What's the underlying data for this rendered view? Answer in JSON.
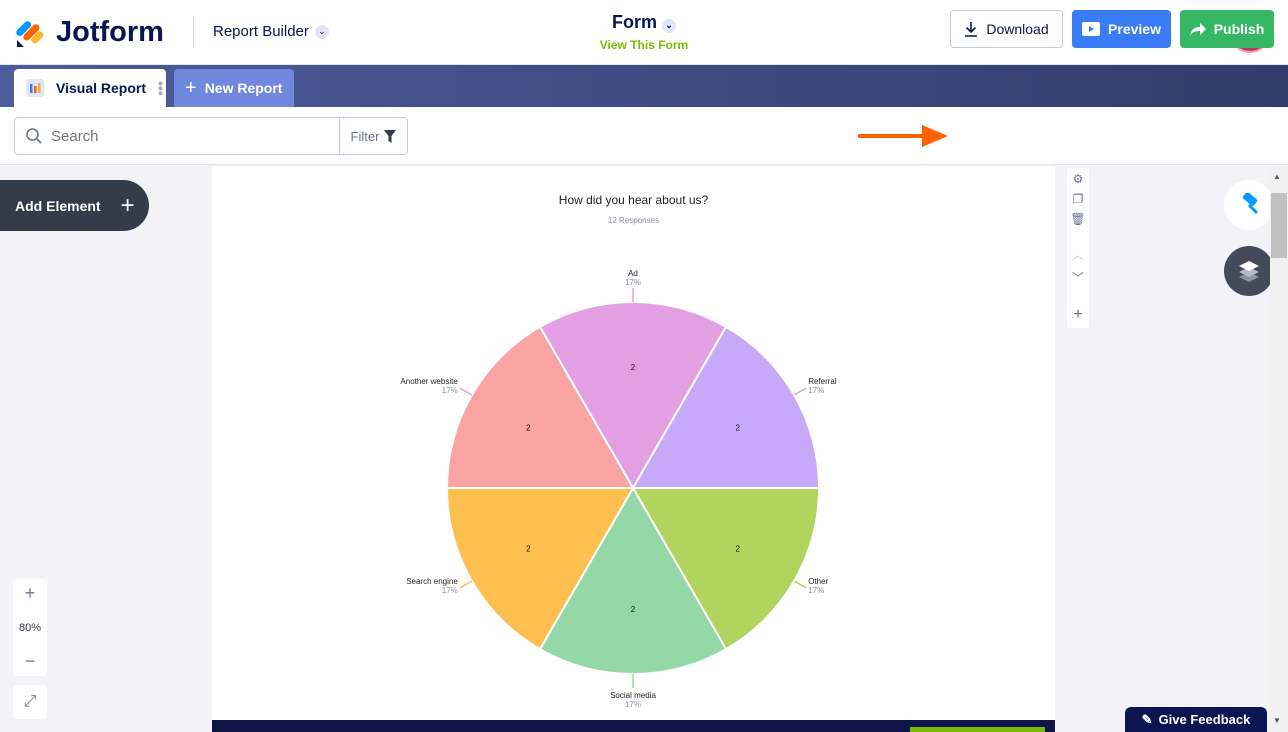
{
  "header": {
    "brand": "Jotform",
    "app": "Report Builder",
    "form_title": "Form",
    "view_form": "View This Form"
  },
  "tabs": [
    {
      "label": "Visual Report"
    },
    {
      "label": "New Report"
    }
  ],
  "toolbar": {
    "search_placeholder": "Search",
    "filter": "Filter",
    "download": "Download",
    "preview": "Preview",
    "publish": "Publish"
  },
  "left": {
    "add_element": "Add Element",
    "zoom": "80%"
  },
  "feedback": "Give Feedback",
  "colors": {
    "accent_blue": "#3a7bf6",
    "publish_green": "#35b764",
    "arrow_orange": "#ff6100"
  },
  "chart_data": {
    "type": "pie",
    "title": "How did you hear about us?",
    "subtitle": "12 Responses",
    "slices": [
      {
        "label": "Ad",
        "value": 2,
        "percent": "17%",
        "color": "#e2a0e2"
      },
      {
        "label": "Referral",
        "value": 2,
        "percent": "17%",
        "color": "#c7a8f9"
      },
      {
        "label": "Other",
        "value": 2,
        "percent": "17%",
        "color": "#b0d45e"
      },
      {
        "label": "Social media",
        "value": 2,
        "percent": "17%",
        "color": "#94d8a8"
      },
      {
        "label": "Search engine",
        "value": 2,
        "percent": "17%",
        "color": "#fdbf4f"
      },
      {
        "label": "Another website",
        "value": 2,
        "percent": "17%",
        "color": "#f9a3a3"
      }
    ]
  }
}
